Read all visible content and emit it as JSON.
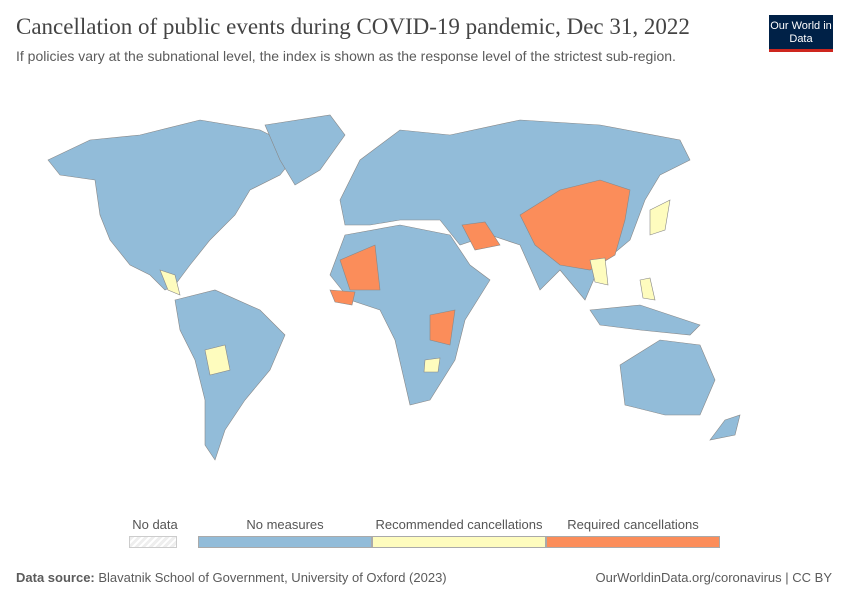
{
  "header": {
    "title": "Cancellation of public events during COVID-19 pandemic, Dec 31, 2022",
    "subtitle": "If policies vary at the subnational level, the index is shown as the response level of the strictest sub-region.",
    "logo": "Our World in Data"
  },
  "legend": {
    "no_data": {
      "label": "No data",
      "color": "#eeeeee"
    },
    "categories": [
      {
        "label": "No measures",
        "color": "#92bcd9"
      },
      {
        "label": "Recommended cancellations",
        "color": "#fefcbe"
      },
      {
        "label": "Required cancellations",
        "color": "#fb8d5a"
      }
    ]
  },
  "footer": {
    "source_label": "Data source:",
    "source": "Blavatnik School of Government, University of Oxford (2023)",
    "link": "OurWorldinData.org/coronavirus | CC BY"
  }
}
